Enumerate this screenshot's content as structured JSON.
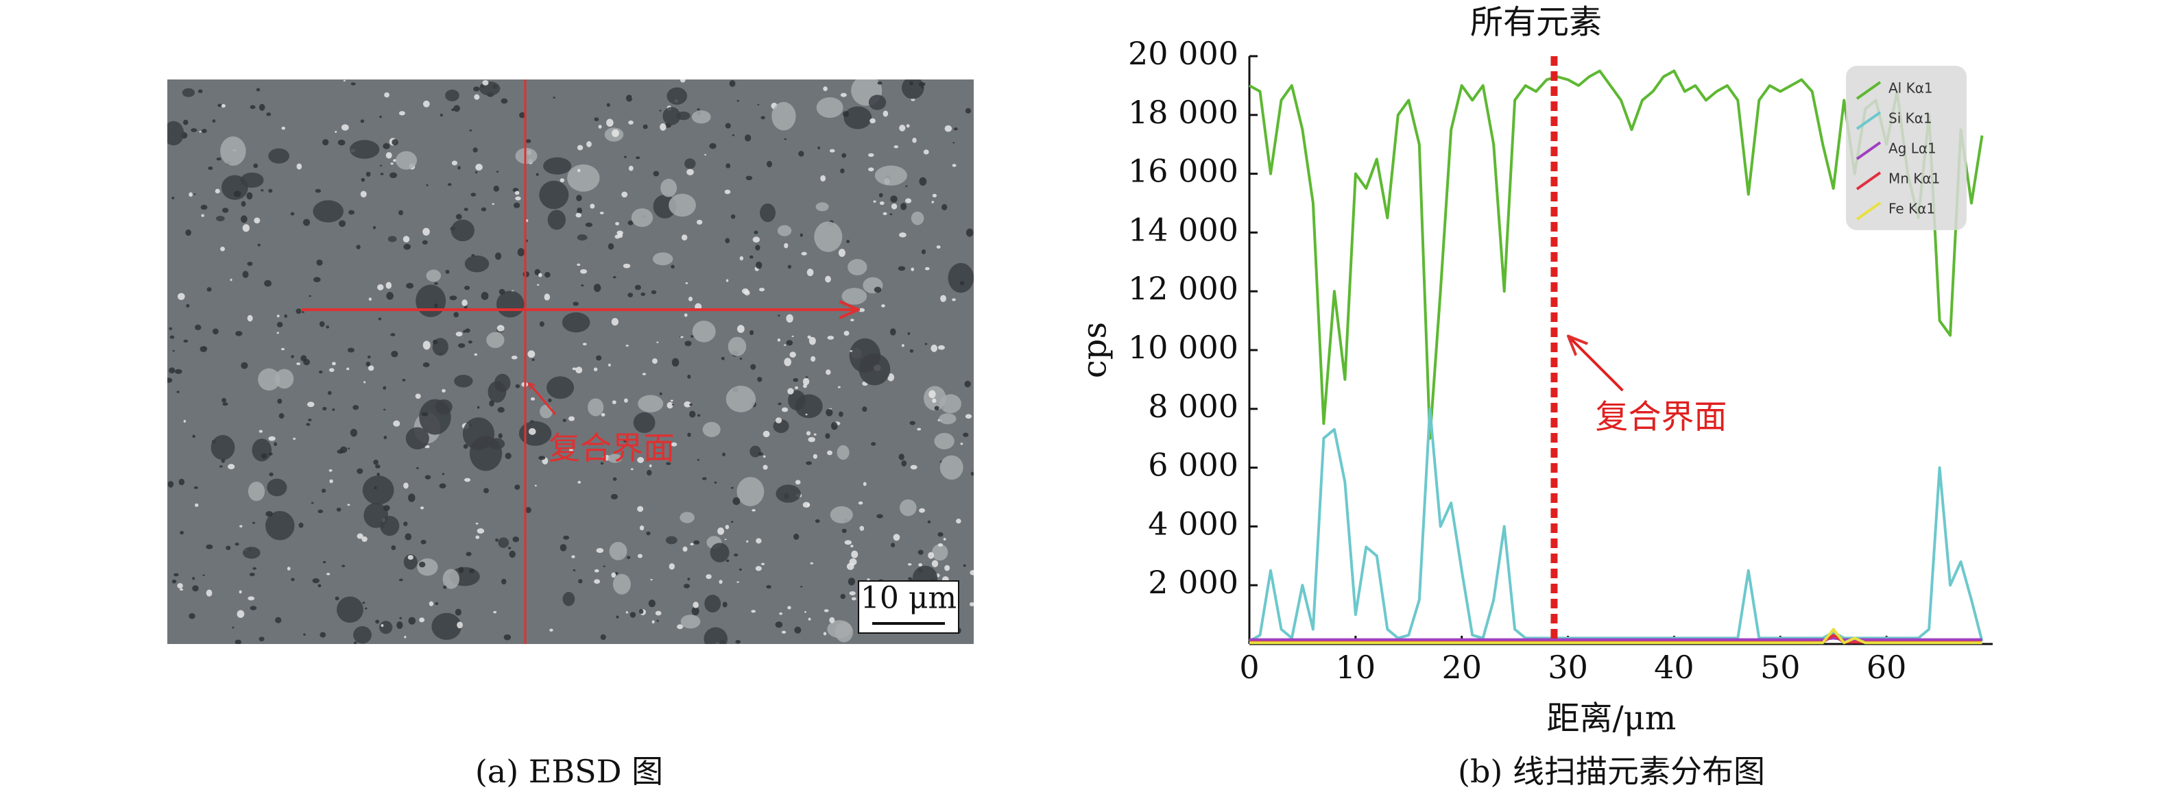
{
  "micrograph": {
    "annotation": "复合界面",
    "scale_bar": "10 μm",
    "caption": "(a) EBSD 图"
  },
  "chart_data": {
    "type": "line",
    "title": "所有元素",
    "caption": "(b) 线扫描元素分布图",
    "x_label": "距离/μm",
    "y_label": "cps",
    "xlim": [
      0,
      70
    ],
    "ylim": [
      0,
      20000
    ],
    "xticks": [
      0,
      10,
      20,
      30,
      40,
      50,
      60
    ],
    "yticks": [
      {
        "value": 2000,
        "label": "2 000"
      },
      {
        "value": 4000,
        "label": "4 000"
      },
      {
        "value": 6000,
        "label": "6 000"
      },
      {
        "value": 8000,
        "label": "8 000"
      },
      {
        "value": 10000,
        "label": "10 000"
      },
      {
        "value": 12000,
        "label": "12 000"
      },
      {
        "value": 14000,
        "label": "14 000"
      },
      {
        "value": 16000,
        "label": "16 000"
      },
      {
        "value": 18000,
        "label": "18 000"
      },
      {
        "value": 20000,
        "label": "20 000"
      }
    ],
    "legend": "upper right",
    "annotations": [
      {
        "text": "复合界面",
        "x": 28.7,
        "color": "#e02020"
      }
    ],
    "x": [
      0,
      1,
      2,
      3,
      4,
      5,
      6,
      7,
      8,
      9,
      10,
      11,
      12,
      13,
      14,
      15,
      16,
      17,
      18,
      19,
      20,
      21,
      22,
      23,
      24,
      25,
      26,
      27,
      28,
      29,
      30,
      31,
      32,
      33,
      34,
      35,
      36,
      37,
      38,
      39,
      40,
      41,
      42,
      43,
      44,
      45,
      46,
      47,
      48,
      49,
      50,
      51,
      52,
      53,
      54,
      55,
      56,
      57,
      58,
      59,
      60,
      61,
      62,
      63,
      64,
      65,
      66,
      67,
      68,
      69
    ],
    "series": [
      {
        "name": "Al Kα1",
        "color": "#5db832",
        "values": [
          19000,
          18800,
          16000,
          18500,
          19000,
          17500,
          15000,
          7500,
          12000,
          9000,
          16000,
          15500,
          16500,
          14500,
          18000,
          18500,
          17000,
          7000,
          12000,
          17500,
          19000,
          18500,
          19000,
          17000,
          12000,
          18500,
          19000,
          18800,
          19200,
          19300,
          19200,
          19000,
          19300,
          19500,
          19000,
          18500,
          17500,
          18500,
          18800,
          19300,
          19500,
          18800,
          19000,
          18500,
          18800,
          19000,
          18500,
          15300,
          18500,
          19000,
          18800,
          19000,
          19200,
          18800,
          17000,
          15500,
          18500,
          16000,
          18200,
          18500,
          17000,
          18800,
          16000,
          14500,
          18000,
          11000,
          10500,
          17500,
          15000,
          17300
        ]
      },
      {
        "name": "Si Kα1",
        "color": "#6cc8cc",
        "values": [
          100,
          300,
          2500,
          500,
          200,
          2000,
          500,
          7000,
          7300,
          5500,
          1000,
          3300,
          3000,
          500,
          200,
          300,
          1500,
          8000,
          4000,
          4800,
          2500,
          300,
          200,
          1500,
          4000,
          500,
          200,
          200,
          200,
          200,
          200,
          200,
          200,
          200,
          200,
          200,
          200,
          200,
          200,
          200,
          200,
          200,
          200,
          200,
          200,
          200,
          200,
          2500,
          200,
          200,
          200,
          200,
          200,
          200,
          200,
          400,
          200,
          200,
          200,
          200,
          200,
          200,
          200,
          200,
          500,
          6000,
          2000,
          2800,
          1500,
          100
        ]
      },
      {
        "name": "Ag Lα1",
        "color": "#a040c0",
        "values": [
          150,
          150,
          150,
          150,
          150,
          150,
          150,
          150,
          150,
          150,
          150,
          150,
          150,
          150,
          150,
          150,
          150,
          150,
          150,
          150,
          150,
          150,
          150,
          150,
          150,
          150,
          150,
          150,
          150,
          150,
          150,
          150,
          150,
          150,
          150,
          150,
          150,
          150,
          150,
          150,
          150,
          150,
          150,
          150,
          150,
          150,
          150,
          150,
          150,
          150,
          150,
          150,
          150,
          150,
          150,
          200,
          150,
          150,
          150,
          150,
          150,
          150,
          150,
          150,
          150,
          150,
          150,
          150,
          150,
          150
        ]
      },
      {
        "name": "Mn Kα1",
        "color": "#e03040",
        "values": [
          60,
          60,
          60,
          60,
          60,
          60,
          60,
          60,
          60,
          60,
          60,
          60,
          60,
          60,
          60,
          60,
          60,
          60,
          60,
          60,
          60,
          60,
          60,
          60,
          60,
          60,
          60,
          60,
          60,
          60,
          60,
          60,
          60,
          60,
          60,
          60,
          60,
          60,
          60,
          60,
          60,
          60,
          60,
          60,
          60,
          60,
          60,
          60,
          60,
          60,
          60,
          60,
          60,
          60,
          60,
          300,
          60,
          60,
          60,
          60,
          60,
          60,
          60,
          60,
          60,
          60,
          60,
          60,
          60,
          60
        ]
      },
      {
        "name": "Fe Kα1",
        "color": "#e8e040",
        "values": [
          40,
          40,
          40,
          40,
          40,
          40,
          40,
          40,
          40,
          40,
          40,
          40,
          40,
          40,
          40,
          40,
          40,
          40,
          40,
          40,
          40,
          40,
          40,
          40,
          40,
          40,
          40,
          40,
          40,
          40,
          40,
          40,
          40,
          40,
          40,
          40,
          40,
          40,
          40,
          40,
          40,
          40,
          40,
          40,
          40,
          40,
          40,
          40,
          40,
          40,
          40,
          40,
          40,
          40,
          40,
          500,
          40,
          200,
          40,
          40,
          40,
          40,
          40,
          40,
          40,
          40,
          40,
          40,
          40,
          40
        ]
      }
    ]
  }
}
